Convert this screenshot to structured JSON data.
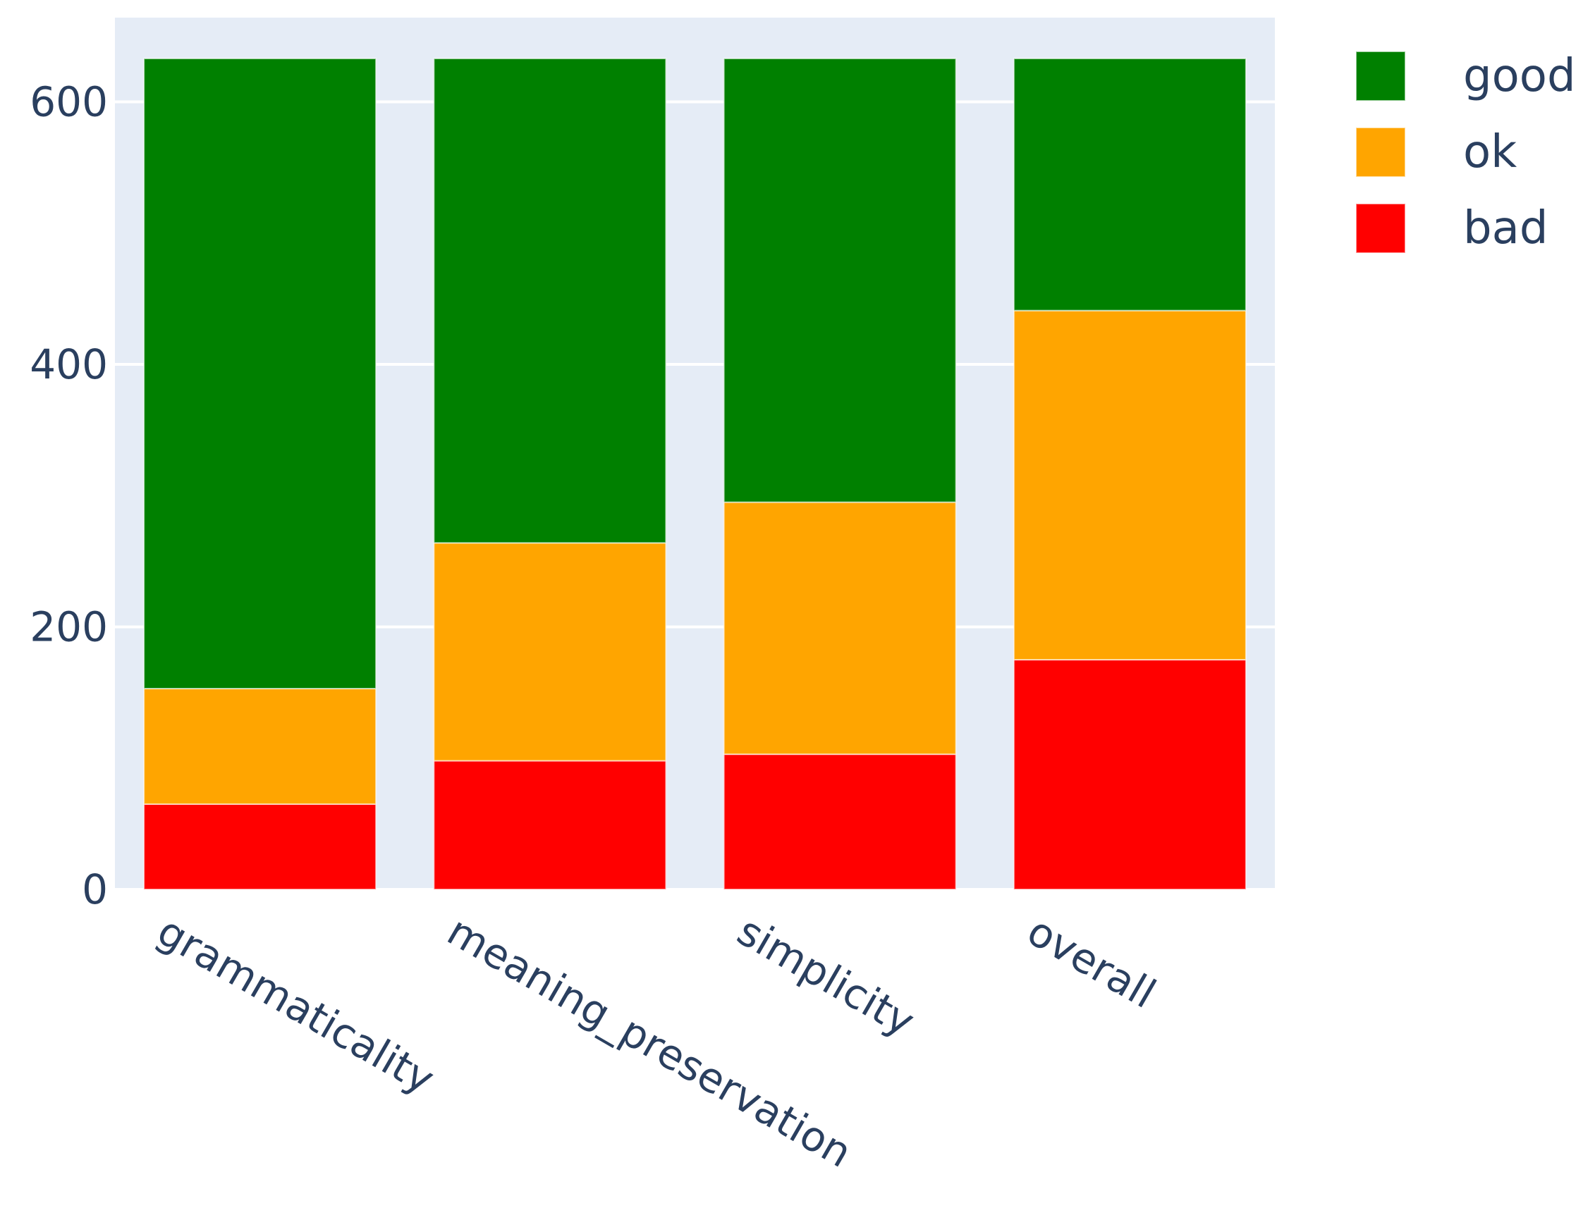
{
  "chart_data": {
    "type": "bar",
    "barmode": "stack",
    "categories": [
      "grammaticality",
      "meaning_preservation",
      "simplicity",
      "overall"
    ],
    "series": [
      {
        "name": "bad",
        "color": "#ff0000",
        "values": [
          65,
          98,
          103,
          175
        ]
      },
      {
        "name": "ok",
        "color": "#ffa500",
        "values": [
          88,
          166,
          192,
          266
        ]
      },
      {
        "name": "good",
        "color": "#008000",
        "values": [
          480,
          369,
          338,
          192
        ]
      }
    ],
    "legend_order": [
      "good",
      "ok",
      "bad"
    ],
    "yticks": [
      0,
      200,
      400,
      600
    ],
    "ylim": [
      0,
      666
    ],
    "grid": true,
    "legend_position": "top-right",
    "plot_bg": "#e5ecf6",
    "tick_color": "#2a3f5f"
  }
}
